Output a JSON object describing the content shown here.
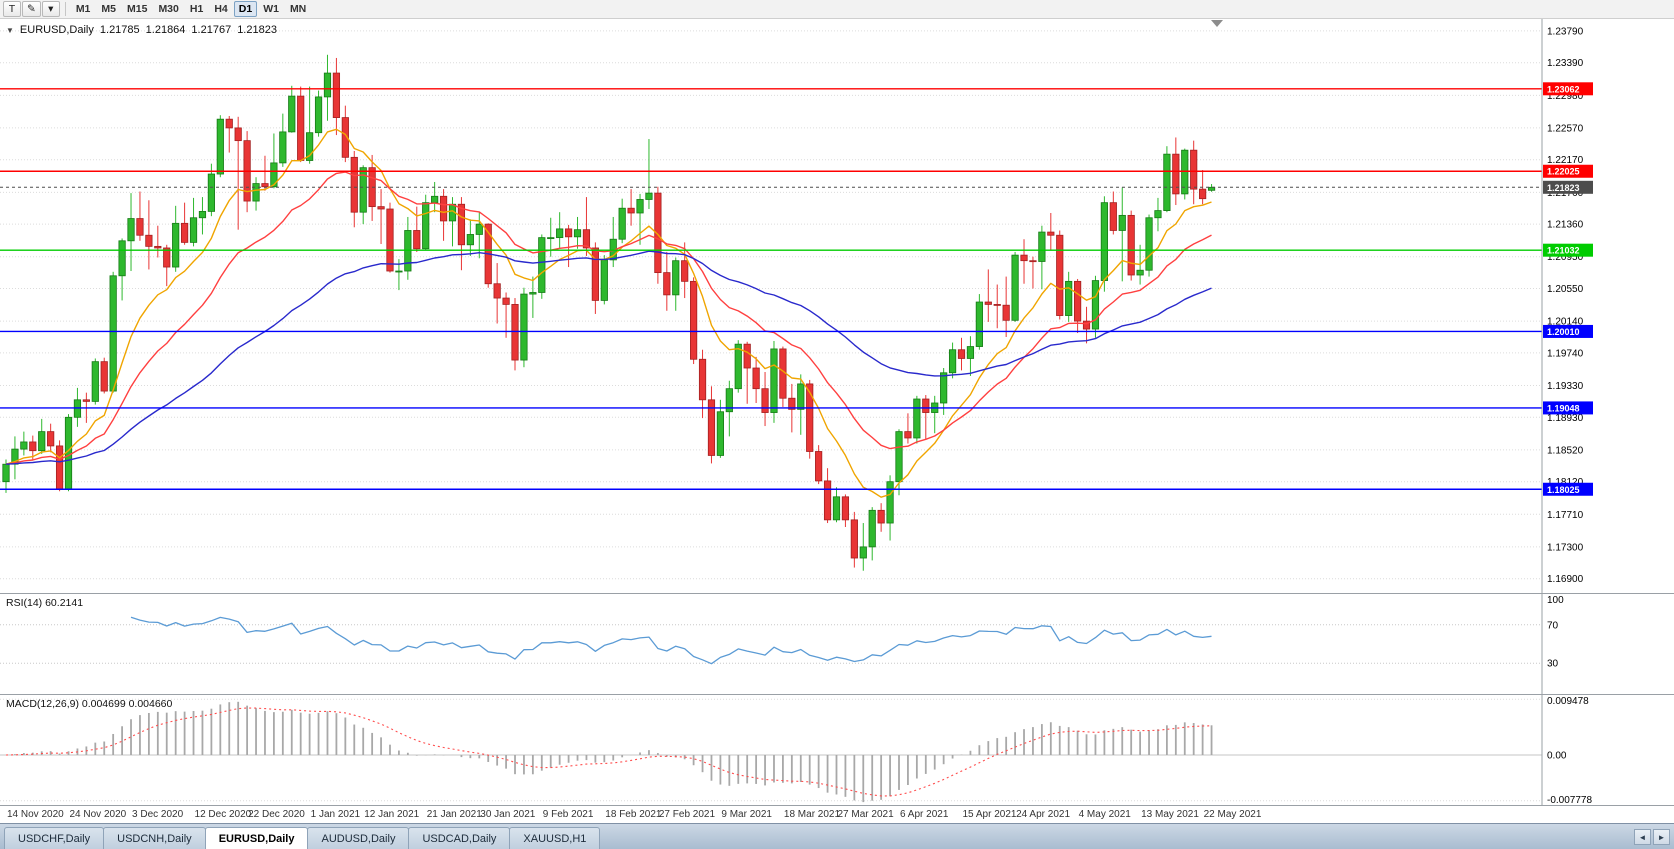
{
  "toolbar": {
    "tools": [
      {
        "name": "text-cursor-tool",
        "glyph": "T"
      },
      {
        "name": "draw-tool",
        "glyph": "✎"
      },
      {
        "name": "tools-dropdown",
        "glyph": "▾"
      }
    ],
    "timeframes": [
      {
        "label": "M1",
        "active": false
      },
      {
        "label": "M5",
        "active": false
      },
      {
        "label": "M15",
        "active": false
      },
      {
        "label": "M30",
        "active": false
      },
      {
        "label": "H1",
        "active": false
      },
      {
        "label": "H4",
        "active": false
      },
      {
        "label": "D1",
        "active": true
      },
      {
        "label": "W1",
        "active": false
      },
      {
        "label": "MN",
        "active": false
      }
    ]
  },
  "chart": {
    "symbol_line": {
      "collapse_glyph": "▼",
      "symbol": "EURUSD,Daily",
      "open": "1.21785",
      "high": "1.21864",
      "low": "1.21767",
      "close": "1.21823"
    },
    "price_axis": [
      "1.23790",
      "1.23390",
      "1.22980",
      "1.22570",
      "1.22170",
      "1.21760",
      "1.21360",
      "1.20950",
      "1.20550",
      "1.20140",
      "1.19740",
      "1.19330",
      "1.18930",
      "1.18520",
      "1.18120",
      "1.17710",
      "1.17300",
      "1.16900"
    ],
    "y_range": {
      "max": 1.2394,
      "min": 1.1672
    },
    "levels": [
      {
        "price": 1.23062,
        "label": "1.23062",
        "color": "#ff0000",
        "style": "solid",
        "type": "resistance"
      },
      {
        "price": 1.22025,
        "label": "1.22025",
        "color": "#ff0000",
        "style": "solid",
        "type": "resistance"
      },
      {
        "price": 1.21823,
        "label": "1.21823",
        "color": "#4d4d4d",
        "style": "dotted",
        "type": "current-price"
      },
      {
        "price": 1.21032,
        "label": "1.21032",
        "color": "#00cc00",
        "style": "solid",
        "type": "pivot"
      },
      {
        "price": 1.2001,
        "label": "1.20010",
        "color": "#0000ff",
        "style": "solid",
        "type": "support"
      },
      {
        "price": 1.19048,
        "label": "1.19048",
        "color": "#0000ff",
        "style": "solid",
        "type": "support"
      },
      {
        "price": 1.18025,
        "label": "1.18025",
        "color": "#0000ff",
        "style": "solid",
        "type": "support"
      }
    ]
  },
  "chart_data": {
    "type": "candlestick",
    "symbol": "EURUSD",
    "timeframe": "Daily",
    "title": "EURUSD,Daily",
    "ylim": [
      1.1672,
      1.2394
    ],
    "moving_averages": [
      {
        "name": "fast-ma",
        "period": 10,
        "method": "ema",
        "color": "#f0a500"
      },
      {
        "name": "medium-ma",
        "period": 21,
        "method": "ema",
        "color": "#ff4040"
      },
      {
        "name": "slow-ma",
        "period": 55,
        "method": "ema",
        "color": "#2929cc"
      }
    ],
    "x_labels": [
      {
        "text": "14 Nov 2020",
        "bar": 0
      },
      {
        "text": "24 Nov 2020",
        "bar": 7
      },
      {
        "text": "3 Dec 2020",
        "bar": 14
      },
      {
        "text": "12 Dec 2020",
        "bar": 21
      },
      {
        "text": "22 Dec 2020",
        "bar": 27
      },
      {
        "text": "1 Jan 2021",
        "bar": 34
      },
      {
        "text": "12 Jan 2021",
        "bar": 40
      },
      {
        "text": "21 Jan 2021",
        "bar": 47
      },
      {
        "text": "30 Jan 2021",
        "bar": 53
      },
      {
        "text": "9 Feb 2021",
        "bar": 60
      },
      {
        "text": "18 Feb 2021",
        "bar": 67
      },
      {
        "text": "27 Feb 2021",
        "bar": 73
      },
      {
        "text": "9 Mar 2021",
        "bar": 80
      },
      {
        "text": "18 Mar 2021",
        "bar": 87
      },
      {
        "text": "27 Mar 2021",
        "bar": 93
      },
      {
        "text": "6 Apr 2021",
        "bar": 100
      },
      {
        "text": "15 Apr 2021",
        "bar": 107
      },
      {
        "text": "24 Apr 2021",
        "bar": 113
      },
      {
        "text": "4 May 2021",
        "bar": 120
      },
      {
        "text": "13 May 2021",
        "bar": 127
      },
      {
        "text": "22 May 2021",
        "bar": 134
      }
    ],
    "candles": [
      [
        1.1812,
        1.184,
        1.1798,
        1.1834
      ],
      [
        1.1834,
        1.1869,
        1.1815,
        1.1853
      ],
      [
        1.1853,
        1.1875,
        1.1845,
        1.1862
      ],
      [
        1.1862,
        1.187,
        1.184,
        1.1851
      ],
      [
        1.1851,
        1.1891,
        1.1847,
        1.1875
      ],
      [
        1.1875,
        1.1885,
        1.1849,
        1.1857
      ],
      [
        1.1857,
        1.1864,
        1.18,
        1.1803
      ],
      [
        1.1803,
        1.1897,
        1.18,
        1.1893
      ],
      [
        1.1893,
        1.193,
        1.1881,
        1.1915
      ],
      [
        1.1915,
        1.1924,
        1.1886,
        1.1913
      ],
      [
        1.1913,
        1.1967,
        1.1909,
        1.1963
      ],
      [
        1.1963,
        1.1968,
        1.1923,
        1.1926
      ],
      [
        1.1926,
        1.2076,
        1.1924,
        1.2071
      ],
      [
        1.2071,
        1.2118,
        1.204,
        1.2115
      ],
      [
        1.2115,
        1.2175,
        1.2077,
        1.2143
      ],
      [
        1.2143,
        1.2177,
        1.2115,
        1.2122
      ],
      [
        1.2122,
        1.2166,
        1.2079,
        1.2108
      ],
      [
        1.2108,
        1.2134,
        1.2094,
        1.2106
      ],
      [
        1.2106,
        1.211,
        1.2058,
        1.2082
      ],
      [
        1.2082,
        1.2159,
        1.2076,
        1.2137
      ],
      [
        1.2137,
        1.2163,
        1.211,
        1.2113
      ],
      [
        1.2113,
        1.2169,
        1.2108,
        1.2144
      ],
      [
        1.2144,
        1.217,
        1.2123,
        1.2152
      ],
      [
        1.2152,
        1.2212,
        1.2146,
        1.2199
      ],
      [
        1.2199,
        1.2273,
        1.2195,
        1.2268
      ],
      [
        1.2268,
        1.2272,
        1.2226,
        1.2257
      ],
      [
        1.2257,
        1.2271,
        1.2129,
        1.2241
      ],
      [
        1.2241,
        1.2253,
        1.2151,
        1.2165
      ],
      [
        1.2165,
        1.2195,
        1.2153,
        1.2187
      ],
      [
        1.2187,
        1.2222,
        1.2178,
        1.2183
      ],
      [
        1.2183,
        1.225,
        1.2181,
        1.2213
      ],
      [
        1.2213,
        1.2275,
        1.2208,
        1.2252
      ],
      [
        1.2252,
        1.231,
        1.2251,
        1.2297
      ],
      [
        1.2297,
        1.2309,
        1.2214,
        1.2216
      ],
      [
        1.2216,
        1.2309,
        1.2212,
        1.2251
      ],
      [
        1.2251,
        1.2304,
        1.2246,
        1.2296
      ],
      [
        1.2296,
        1.2349,
        1.2266,
        1.2326
      ],
      [
        1.2326,
        1.2345,
        1.2248,
        1.227
      ],
      [
        1.227,
        1.2285,
        1.2214,
        1.222
      ],
      [
        1.222,
        1.2228,
        1.2132,
        1.2151
      ],
      [
        1.2151,
        1.221,
        1.2136,
        1.2207
      ],
      [
        1.2207,
        1.2223,
        1.214,
        1.2158
      ],
      [
        1.2158,
        1.218,
        1.2111,
        1.2155
      ],
      [
        1.2155,
        1.2163,
        1.2075,
        1.2077
      ],
      [
        1.2077,
        1.2092,
        1.2053,
        1.2077
      ],
      [
        1.2077,
        1.2145,
        1.2066,
        1.2128
      ],
      [
        1.2128,
        1.2158,
        1.2101,
        1.2105
      ],
      [
        1.2105,
        1.2173,
        1.2103,
        1.2163
      ],
      [
        1.2163,
        1.2189,
        1.2151,
        1.2171
      ],
      [
        1.2171,
        1.218,
        1.2115,
        1.214
      ],
      [
        1.214,
        1.217,
        1.2108,
        1.2161
      ],
      [
        1.2161,
        1.217,
        1.2078,
        1.211
      ],
      [
        1.211,
        1.2142,
        1.2096,
        1.2123
      ],
      [
        1.2123,
        1.2151,
        1.2093,
        1.2136
      ],
      [
        1.2136,
        1.2137,
        1.2056,
        1.2061
      ],
      [
        1.2061,
        1.2087,
        1.2011,
        1.2043
      ],
      [
        1.2043,
        1.205,
        1.1993,
        1.2035
      ],
      [
        1.2035,
        1.2043,
        1.1952,
        1.1965
      ],
      [
        1.1965,
        1.2056,
        1.1956,
        1.2048
      ],
      [
        1.2048,
        1.207,
        1.2018,
        1.205
      ],
      [
        1.205,
        1.2123,
        1.2042,
        1.2119
      ],
      [
        1.2119,
        1.2144,
        1.2095,
        1.2119
      ],
      [
        1.2119,
        1.2151,
        1.2106,
        1.213
      ],
      [
        1.213,
        1.2135,
        1.2082,
        1.212
      ],
      [
        1.212,
        1.2145,
        1.2105,
        1.2129
      ],
      [
        1.2129,
        1.217,
        1.2096,
        1.2106
      ],
      [
        1.2106,
        1.2113,
        1.2023,
        1.204
      ],
      [
        1.204,
        1.2097,
        1.2035,
        1.2091
      ],
      [
        1.2091,
        1.2145,
        1.2082,
        1.2117
      ],
      [
        1.2117,
        1.2168,
        1.2112,
        1.2156
      ],
      [
        1.2156,
        1.218,
        1.2134,
        1.215
      ],
      [
        1.215,
        1.2174,
        1.211,
        1.2167
      ],
      [
        1.2167,
        1.2243,
        1.2155,
        1.2175
      ],
      [
        1.2175,
        1.2183,
        1.2061,
        1.2075
      ],
      [
        1.2075,
        1.2101,
        1.2027,
        1.2047
      ],
      [
        1.2047,
        1.2094,
        1.2027,
        1.209
      ],
      [
        1.209,
        1.2113,
        1.2043,
        1.2064
      ],
      [
        1.2064,
        1.2069,
        1.196,
        1.1966
      ],
      [
        1.1966,
        1.1978,
        1.1892,
        1.1915
      ],
      [
        1.1915,
        1.1932,
        1.1835,
        1.1845
      ],
      [
        1.1845,
        1.1915,
        1.1842,
        1.19
      ],
      [
        1.19,
        1.1939,
        1.1869,
        1.1929
      ],
      [
        1.1929,
        1.199,
        1.1924,
        1.1985
      ],
      [
        1.1985,
        1.1988,
        1.191,
        1.1955
      ],
      [
        1.1955,
        1.1969,
        1.1911,
        1.1929
      ],
      [
        1.1929,
        1.195,
        1.1882,
        1.1899
      ],
      [
        1.1899,
        1.1989,
        1.1886,
        1.1979
      ],
      [
        1.1979,
        1.1982,
        1.1906,
        1.1917
      ],
      [
        1.1917,
        1.1935,
        1.1874,
        1.1903
      ],
      [
        1.1903,
        1.1947,
        1.1871,
        1.1935
      ],
      [
        1.1935,
        1.194,
        1.1841,
        1.185
      ],
      [
        1.185,
        1.1858,
        1.1809,
        1.1813
      ],
      [
        1.1813,
        1.1829,
        1.176,
        1.1764
      ],
      [
        1.1764,
        1.1805,
        1.1761,
        1.1793
      ],
      [
        1.1793,
        1.1796,
        1.1755,
        1.1764
      ],
      [
        1.1764,
        1.1774,
        1.1704,
        1.1716
      ],
      [
        1.1716,
        1.176,
        1.17,
        1.173
      ],
      [
        1.173,
        1.178,
        1.1713,
        1.1776
      ],
      [
        1.1776,
        1.1785,
        1.1749,
        1.176
      ],
      [
        1.176,
        1.182,
        1.1738,
        1.1812
      ],
      [
        1.1812,
        1.1878,
        1.1795,
        1.1875
      ],
      [
        1.1875,
        1.1898,
        1.186,
        1.1867
      ],
      [
        1.1867,
        1.192,
        1.186,
        1.1916
      ],
      [
        1.1916,
        1.1921,
        1.1865,
        1.1899
      ],
      [
        1.1899,
        1.192,
        1.1873,
        1.1911
      ],
      [
        1.1911,
        1.1955,
        1.1896,
        1.1949
      ],
      [
        1.1949,
        1.1987,
        1.1942,
        1.1978
      ],
      [
        1.1978,
        1.1993,
        1.1952,
        1.1967
      ],
      [
        1.1967,
        1.1995,
        1.1945,
        1.1982
      ],
      [
        1.1982,
        1.2048,
        1.1978,
        1.2038
      ],
      [
        1.2038,
        1.2079,
        1.2013,
        1.2035
      ],
      [
        1.2035,
        1.206,
        1.2005,
        1.2034
      ],
      [
        1.2034,
        1.207,
        1.1994,
        1.2015
      ],
      [
        1.2015,
        1.2101,
        1.2013,
        1.2097
      ],
      [
        1.2097,
        1.2117,
        1.2061,
        1.209
      ],
      [
        1.209,
        1.2095,
        1.2055,
        1.2089
      ],
      [
        1.2089,
        1.2134,
        1.2054,
        1.2126
      ],
      [
        1.2126,
        1.215,
        1.2103,
        1.2122
      ],
      [
        1.2122,
        1.2128,
        1.2016,
        1.2021
      ],
      [
        1.2021,
        1.2076,
        1.2013,
        1.2064
      ],
      [
        1.2064,
        1.2067,
        1.1999,
        1.2014
      ],
      [
        1.2014,
        1.2032,
        1.1986,
        1.2004
      ],
      [
        1.2004,
        1.2071,
        1.1993,
        1.2065
      ],
      [
        1.2065,
        1.2171,
        1.2051,
        1.2163
      ],
      [
        1.2163,
        1.2177,
        1.2123,
        1.2128
      ],
      [
        1.2128,
        1.2182,
        1.2064,
        1.2147
      ],
      [
        1.2147,
        1.2153,
        1.2065,
        1.2072
      ],
      [
        1.2072,
        1.211,
        1.206,
        1.2078
      ],
      [
        1.2078,
        1.2148,
        1.207,
        1.2144
      ],
      [
        1.2144,
        1.2169,
        1.2127,
        1.2153
      ],
      [
        1.2153,
        1.2234,
        1.2151,
        1.2224
      ],
      [
        1.2224,
        1.2245,
        1.216,
        1.2174
      ],
      [
        1.2174,
        1.2231,
        1.2167,
        1.2229
      ],
      [
        1.2229,
        1.2241,
        1.2161,
        1.218
      ],
      [
        1.218,
        1.2204,
        1.2161,
        1.2168
      ],
      [
        1.21785,
        1.21864,
        1.21767,
        1.21823
      ]
    ]
  },
  "rsi": {
    "label": "RSI(14) 60.2141",
    "name": "RSI",
    "period": 14,
    "value": "60.2141",
    "axis_labels": [
      "100",
      "70",
      "30"
    ],
    "upper_level": 70,
    "lower_level": 30,
    "color": "#5b9bd5"
  },
  "macd": {
    "label": "MACD(12,26,9) 0.004699 0.004660",
    "name": "MACD",
    "fast": 12,
    "slow": 26,
    "signal_period": 9,
    "main_value": "0.004699",
    "signal_value": "0.004660",
    "axis_labels": [
      "0.009478",
      "0.00",
      "-0.007778"
    ],
    "axis_values": [
      0.009478,
      0,
      -0.007778
    ],
    "hist_color": "#a8a8a8",
    "signal_color": "#ff4d4d"
  },
  "tabs": [
    {
      "label": "USDCHF,Daily",
      "active": false
    },
    {
      "label": "USDCNH,Daily",
      "active": false
    },
    {
      "label": "EURUSD,Daily",
      "active": true
    },
    {
      "label": "AUDUSD,Daily",
      "active": false
    },
    {
      "label": "USDCAD,Daily",
      "active": false
    },
    {
      "label": "XAUUSD,H1",
      "active": false
    }
  ],
  "tab_scroll": {
    "left_glyph": "◄",
    "right_glyph": "►"
  },
  "colors": {
    "up": "#2eb82e",
    "up_border": "#157a15",
    "down": "#e83535",
    "down_border": "#a32020",
    "grid": "#dcdcdc",
    "axis_border": "#9aa0a6",
    "current_tag_bg": "#4d4d4d",
    "shift_marker": "#8c8c8c"
  }
}
